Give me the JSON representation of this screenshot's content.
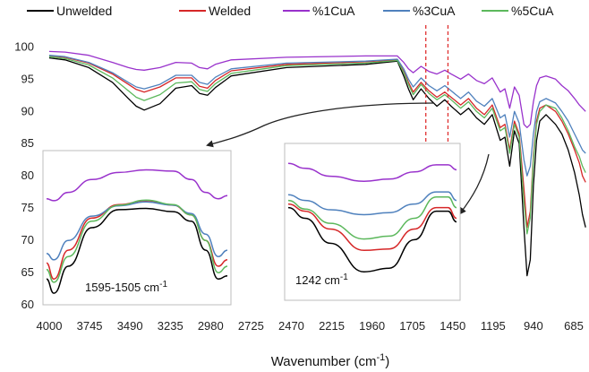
{
  "chart_data": {
    "type": "line",
    "title": "",
    "xlabel": "Wavenumber (cm-1)",
    "ylabel": "",
    "xlim": [
      4000,
      600
    ],
    "ylim": [
      60,
      102
    ],
    "x_reversed": true,
    "x_ticks": [
      4000,
      3745,
      3490,
      3235,
      2980,
      2725,
      2470,
      2215,
      1960,
      1705,
      1450,
      1195,
      940,
      685
    ],
    "y_ticks": [
      60,
      65,
      70,
      75,
      80,
      85,
      90,
      95,
      100
    ],
    "grid": false,
    "legend_position": "top",
    "series": [
      {
        "name": "Unwelded",
        "color": "#000000",
        "x": [
          4000,
          3900,
          3750,
          3600,
          3500,
          3450,
          3400,
          3300,
          3200,
          3100,
          3050,
          3000,
          2950,
          2850,
          2500,
          2000,
          1800,
          1760,
          1730,
          1700,
          1650,
          1600,
          1550,
          1500,
          1460,
          1400,
          1350,
          1300,
          1250,
          1200,
          1150,
          1120,
          1090,
          1060,
          1030,
          1000,
          980,
          960,
          940,
          920,
          900,
          860,
          800,
          760,
          720,
          680,
          650,
          630,
          610
        ],
        "y": [
          98.3,
          98.0,
          96.8,
          94.5,
          92.0,
          90.8,
          90.2,
          91.2,
          93.6,
          94.0,
          92.8,
          92.5,
          93.7,
          95.5,
          96.8,
          97.3,
          97.8,
          95.5,
          93.5,
          91.8,
          93.5,
          92.0,
          90.8,
          91.8,
          90.8,
          89.5,
          90.5,
          89.0,
          88.0,
          89.5,
          85.5,
          86.0,
          81.5,
          87.0,
          85.0,
          72.0,
          64.5,
          67.0,
          78.5,
          85.5,
          88.5,
          89.5,
          88.0,
          86.5,
          84.0,
          80.5,
          77.0,
          74.0,
          72.0
        ]
      },
      {
        "name": "Welded",
        "color": "#d62728",
        "x": [
          4000,
          3900,
          3750,
          3600,
          3500,
          3450,
          3400,
          3300,
          3200,
          3100,
          3050,
          3000,
          2950,
          2850,
          2500,
          2000,
          1800,
          1760,
          1730,
          1700,
          1650,
          1600,
          1550,
          1500,
          1460,
          1400,
          1350,
          1300,
          1250,
          1200,
          1150,
          1120,
          1090,
          1060,
          1030,
          1000,
          980,
          960,
          940,
          920,
          900,
          860,
          800,
          760,
          720,
          680,
          650,
          630,
          610
        ],
        "y": [
          98.6,
          98.4,
          97.5,
          95.8,
          94.2,
          93.4,
          93.0,
          93.8,
          95.2,
          95.2,
          93.9,
          93.6,
          94.8,
          96.3,
          97.3,
          97.7,
          98.0,
          96.2,
          94.5,
          93.0,
          94.5,
          93.2,
          92.2,
          93.0,
          92.2,
          91.0,
          92.0,
          90.5,
          89.5,
          91.0,
          87.5,
          88.0,
          84.0,
          88.5,
          86.5,
          78.0,
          72.0,
          74.5,
          83.0,
          88.5,
          90.5,
          91.0,
          90.0,
          88.5,
          86.5,
          84.0,
          82.0,
          80.0,
          79.0
        ]
      },
      {
        "name": "%1CuA",
        "color": "#9932cc",
        "x": [
          4000,
          3900,
          3750,
          3600,
          3500,
          3450,
          3400,
          3300,
          3200,
          3100,
          3050,
          3000,
          2950,
          2850,
          2500,
          2000,
          1800,
          1760,
          1730,
          1700,
          1650,
          1600,
          1550,
          1500,
          1460,
          1400,
          1350,
          1300,
          1250,
          1200,
          1150,
          1120,
          1090,
          1060,
          1030,
          1000,
          980,
          960,
          940,
          920,
          900,
          860,
          800,
          760,
          720,
          680,
          650,
          630,
          610
        ],
        "y": [
          99.3,
          99.2,
          98.7,
          97.6,
          96.8,
          96.5,
          96.4,
          96.8,
          97.6,
          97.5,
          96.8,
          96.6,
          97.3,
          98.0,
          98.4,
          98.6,
          98.6,
          97.6,
          96.6,
          96.0,
          97.0,
          96.2,
          95.8,
          96.4,
          95.8,
          95.0,
          95.8,
          94.8,
          94.3,
          95.2,
          93.0,
          93.5,
          90.5,
          93.8,
          92.5,
          88.0,
          87.5,
          88.0,
          91.5,
          94.0,
          95.2,
          95.5,
          95.0,
          94.0,
          93.2,
          92.0,
          91.0,
          90.5,
          90.0
        ]
      },
      {
        "name": "%3CuA",
        "color": "#4f81bd",
        "x": [
          4000,
          3900,
          3750,
          3600,
          3500,
          3450,
          3400,
          3300,
          3200,
          3100,
          3050,
          3000,
          2950,
          2850,
          2500,
          2000,
          1800,
          1760,
          1730,
          1700,
          1650,
          1600,
          1550,
          1500,
          1460,
          1400,
          1350,
          1300,
          1250,
          1200,
          1150,
          1120,
          1090,
          1060,
          1030,
          1000,
          980,
          960,
          940,
          920,
          900,
          860,
          800,
          760,
          720,
          680,
          650,
          630,
          610
        ],
        "y": [
          98.7,
          98.5,
          97.6,
          96.0,
          94.5,
          93.8,
          93.5,
          94.2,
          95.6,
          95.6,
          94.5,
          94.2,
          95.3,
          96.6,
          97.5,
          97.8,
          98.1,
          96.6,
          95.0,
          93.8,
          95.2,
          94.0,
          93.2,
          94.0,
          93.2,
          92.0,
          93.0,
          91.6,
          90.8,
          92.0,
          89.0,
          89.5,
          86.0,
          90.0,
          88.2,
          82.5,
          80.0,
          81.5,
          86.5,
          90.0,
          91.5,
          92.0,
          91.3,
          90.0,
          88.5,
          86.5,
          85.0,
          84.0,
          83.5
        ]
      },
      {
        "name": "%5CuA",
        "color": "#5cb85c",
        "x": [
          4000,
          3900,
          3750,
          3600,
          3500,
          3450,
          3400,
          3300,
          3200,
          3100,
          3050,
          3000,
          2950,
          2850,
          2500,
          2000,
          1800,
          1760,
          1730,
          1700,
          1650,
          1600,
          1550,
          1500,
          1460,
          1400,
          1350,
          1300,
          1250,
          1200,
          1150,
          1120,
          1090,
          1060,
          1030,
          1000,
          980,
          960,
          940,
          920,
          900,
          860,
          800,
          760,
          720,
          680,
          650,
          630,
          610
        ],
        "y": [
          98.5,
          98.2,
          97.2,
          95.2,
          93.2,
          92.2,
          91.7,
          92.6,
          94.4,
          94.6,
          93.4,
          93.1,
          94.3,
          95.9,
          97.1,
          97.5,
          97.9,
          96.0,
          94.2,
          92.6,
          94.2,
          92.8,
          91.8,
          92.6,
          91.8,
          90.5,
          91.5,
          90.0,
          89.0,
          90.5,
          87.0,
          87.5,
          83.5,
          88.0,
          86.0,
          76.0,
          71.0,
          73.5,
          82.5,
          88.0,
          90.0,
          91.0,
          90.5,
          89.0,
          87.0,
          84.5,
          83.0,
          81.5,
          80.5
        ]
      }
    ],
    "annotations": {
      "dashed_lines_x": [
        1620,
        1480
      ],
      "inset_left_label": "1595-1505 cm-1",
      "inset_right_label": "1242 cm-1"
    },
    "insets": [
      {
        "name": "inset-left",
        "x": [
          0,
          0.04,
          0.12,
          0.25,
          0.4,
          0.55,
          0.7,
          0.8,
          0.88,
          0.95,
          1.0
        ],
        "series": {
          "Unwelded": [
            64,
            61.8,
            66,
            72,
            74.8,
            75.0,
            74.5,
            73.0,
            68.5,
            64.0,
            64.5
          ],
          "Welded": [
            66.5,
            64,
            68.5,
            73.5,
            75.6,
            76.2,
            75.5,
            74.0,
            70.0,
            66.0,
            67.0
          ],
          "%1CuA": [
            76.5,
            76.2,
            77.5,
            79.5,
            80.6,
            81.0,
            80.8,
            79.5,
            77.5,
            76.5,
            77.0
          ],
          "%3CuA": [
            68.0,
            67.0,
            70.0,
            73.8,
            75.4,
            76.0,
            75.5,
            74.2,
            71.0,
            67.5,
            68.5
          ],
          "%5CuA": [
            65.5,
            63.5,
            67.5,
            73.0,
            75.5,
            76.3,
            75.6,
            74.0,
            70.0,
            65.0,
            66.0
          ]
        }
      },
      {
        "name": "inset-right",
        "x": [
          0,
          0.1,
          0.25,
          0.45,
          0.6,
          0.75,
          0.88,
          0.95,
          1.0
        ],
        "series": {
          "Unwelded": [
            75.0,
            73.5,
            70.0,
            66.0,
            66.5,
            70.5,
            74.5,
            74.5,
            73.0
          ],
          "Welded": [
            75.5,
            74.5,
            72.0,
            69.0,
            69.2,
            72.0,
            75.0,
            75.0,
            73.5
          ],
          "%1CuA": [
            81.2,
            80.5,
            79.4,
            78.7,
            79.0,
            80.0,
            81.0,
            81.0,
            80.3
          ],
          "%3CuA": [
            76.8,
            76.0,
            74.7,
            74.0,
            74.3,
            75.5,
            77.2,
            77.2,
            76.0
          ],
          "%5CuA": [
            76.0,
            74.8,
            72.8,
            70.6,
            71.0,
            73.5,
            76.5,
            76.5,
            75.0
          ]
        }
      }
    ]
  }
}
